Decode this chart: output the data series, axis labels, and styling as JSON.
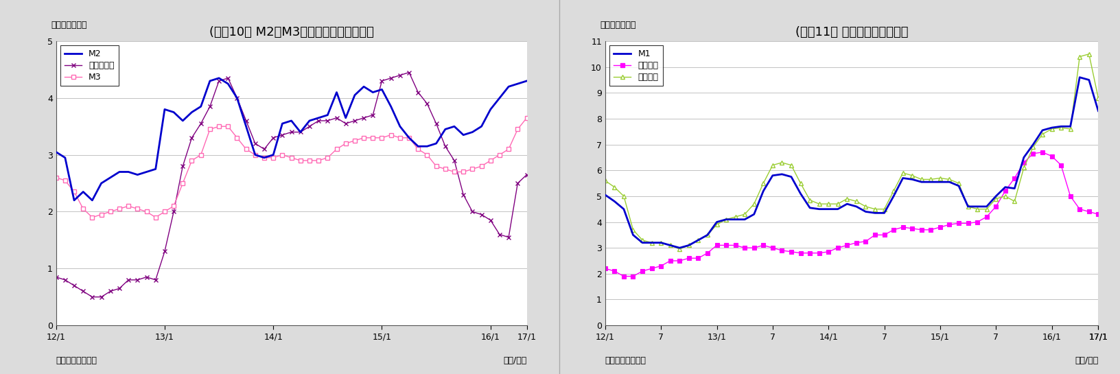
{
  "chart1": {
    "title": "(図蝰10） M2、M3、広義流動性の伸び率",
    "ylabel": "（前年比、％）",
    "xlabel_right": "（年/月）",
    "xlabel_left": "（資料）日本銀行",
    "ylim": [
      0,
      5
    ],
    "yticks": [
      0,
      1,
      2,
      3,
      4,
      5
    ],
    "xtick_months": [
      0,
      12,
      24,
      36,
      48,
      60
    ],
    "xtick_labels": [
      "12/1",
      "13/1",
      "14/1",
      "15/1",
      "16/1",
      "17/1"
    ],
    "M2_color": "#0000CD",
    "kogi_color": "#800080",
    "M3_color": "#FF69B4",
    "M2_label": "M2",
    "kogi_label": "広義流動性",
    "M3_label": "M3",
    "M2": [
      3.05,
      2.95,
      2.2,
      2.35,
      2.2,
      2.5,
      2.6,
      2.7,
      2.7,
      2.65,
      2.7,
      2.75,
      3.8,
      3.75,
      3.6,
      3.75,
      3.85,
      4.3,
      4.35,
      4.25,
      4.0,
      3.5,
      3.0,
      2.95,
      3.0,
      3.55,
      3.6,
      3.4,
      3.6,
      3.65,
      3.7,
      4.1,
      3.65,
      4.05,
      4.2,
      4.1,
      4.15,
      3.85,
      3.5,
      3.3,
      3.15,
      3.15,
      3.2,
      3.45,
      3.5,
      3.35,
      3.4,
      3.5,
      3.8,
      4.0,
      4.2,
      4.25,
      4.3
    ],
    "kogi": [
      0.85,
      0.8,
      0.7,
      0.6,
      0.5,
      0.5,
      0.6,
      0.65,
      0.8,
      0.8,
      0.85,
      0.8,
      1.3,
      2.0,
      2.8,
      3.3,
      3.55,
      3.85,
      4.3,
      4.35,
      4.0,
      3.6,
      3.2,
      3.1,
      3.3,
      3.35,
      3.4,
      3.4,
      3.5,
      3.6,
      3.6,
      3.65,
      3.55,
      3.6,
      3.65,
      3.7,
      4.3,
      4.35,
      4.4,
      4.45,
      4.1,
      3.9,
      3.55,
      3.15,
      2.9,
      2.3,
      2.0,
      1.95,
      1.85,
      1.6,
      1.55,
      2.5,
      2.65
    ],
    "M3": [
      2.6,
      2.55,
      2.35,
      2.05,
      1.9,
      1.95,
      2.0,
      2.05,
      2.1,
      2.05,
      2.0,
      1.9,
      2.0,
      2.1,
      2.5,
      2.9,
      3.0,
      3.45,
      3.5,
      3.5,
      3.3,
      3.1,
      3.0,
      2.95,
      2.95,
      3.0,
      2.95,
      2.9,
      2.9,
      2.9,
      2.95,
      3.1,
      3.2,
      3.25,
      3.3,
      3.3,
      3.3,
      3.35,
      3.3,
      3.3,
      3.1,
      3.0,
      2.8,
      2.75,
      2.7,
      2.7,
      2.75,
      2.8,
      2.9,
      3.0,
      3.1,
      3.45,
      3.65
    ]
  },
  "chart2": {
    "title": "(図蝰11） 現金・預金の伸び率",
    "ylabel": "（前年比、％）",
    "xlabel_right": "（年/月）",
    "xlabel_left": "（資料）日本銀行",
    "ylim": [
      0,
      11
    ],
    "yticks": [
      0,
      1,
      2,
      3,
      4,
      5,
      6,
      7,
      8,
      9,
      10,
      11
    ],
    "xtick_months": [
      0,
      6,
      12,
      18,
      24,
      30,
      36,
      42,
      48,
      54,
      60
    ],
    "xtick_labels": [
      "12/1",
      "7",
      "13/1",
      "7",
      "14/1",
      "7",
      "15/1",
      "7",
      "16/1",
      "7",
      "17/1"
    ],
    "M1_color": "#0000CD",
    "genkin_color": "#FF00FF",
    "yokin_color": "#9ACD32",
    "M1_label": "M1",
    "genkin_label": "現金通貨",
    "yokin_label": "預金通貨",
    "M1": [
      5.05,
      4.8,
      4.5,
      3.5,
      3.2,
      3.2,
      3.2,
      3.1,
      3.0,
      3.1,
      3.3,
      3.5,
      4.0,
      4.1,
      4.1,
      4.1,
      4.3,
      5.2,
      5.8,
      5.85,
      5.75,
      5.1,
      4.55,
      4.5,
      4.5,
      4.5,
      4.7,
      4.6,
      4.4,
      4.35,
      4.35,
      5.0,
      5.7,
      5.65,
      5.55,
      5.55,
      5.55,
      5.55,
      5.4,
      4.6,
      4.6,
      4.6,
      5.0,
      5.35,
      5.3,
      6.5,
      7.0,
      7.55,
      7.65,
      7.7,
      7.7,
      9.6,
      9.5,
      8.3
    ],
    "genkin": [
      2.2,
      2.1,
      1.9,
      1.9,
      2.1,
      2.2,
      2.3,
      2.5,
      2.5,
      2.6,
      2.6,
      2.8,
      3.1,
      3.1,
      3.1,
      3.0,
      3.0,
      3.1,
      3.0,
      2.9,
      2.85,
      2.8,
      2.8,
      2.8,
      2.85,
      3.0,
      3.1,
      3.2,
      3.25,
      3.5,
      3.5,
      3.7,
      3.8,
      3.75,
      3.7,
      3.7,
      3.8,
      3.9,
      3.95,
      3.95,
      4.0,
      4.2,
      4.6,
      5.2,
      5.7,
      6.3,
      6.65,
      6.7,
      6.55,
      6.2,
      5.0,
      4.5,
      4.4,
      4.3
    ],
    "yokin": [
      5.6,
      5.35,
      5.0,
      3.7,
      3.3,
      3.2,
      3.2,
      3.1,
      2.95,
      3.1,
      3.3,
      3.5,
      3.9,
      4.1,
      4.2,
      4.3,
      4.7,
      5.5,
      6.2,
      6.3,
      6.2,
      5.5,
      4.85,
      4.7,
      4.7,
      4.7,
      4.9,
      4.8,
      4.6,
      4.5,
      4.5,
      5.2,
      5.9,
      5.8,
      5.65,
      5.65,
      5.7,
      5.65,
      5.5,
      4.6,
      4.5,
      4.5,
      4.9,
      5.0,
      4.8,
      6.1,
      6.9,
      7.4,
      7.6,
      7.65,
      7.6,
      10.4,
      10.5,
      8.8
    ]
  },
  "background_color": "#FFFFFF",
  "outer_background": "#DCDCDC",
  "font_size_title": 13,
  "font_size_label": 9,
  "font_size_tick": 9,
  "font_size_legend": 9
}
